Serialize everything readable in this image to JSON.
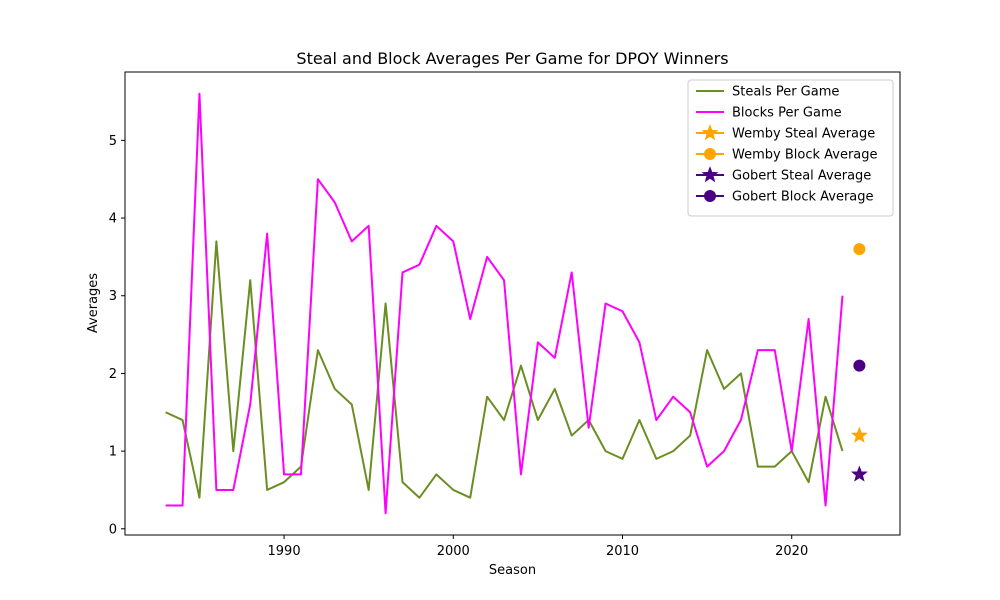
{
  "chart_data": {
    "type": "line",
    "title": "Steal and Block Averages Per Game for DPOY Winners",
    "xlabel": "Season",
    "ylabel": "Averages",
    "xlim": [
      1980.6,
      2026.4
    ],
    "ylim": [
      -0.08,
      5.88
    ],
    "xticks": [
      1990,
      2000,
      2010,
      2020
    ],
    "yticks": [
      0,
      1,
      2,
      3,
      4,
      5
    ],
    "grid": false,
    "legend_position": "top-right",
    "x": [
      1983,
      1984,
      1985,
      1986,
      1987,
      1988,
      1989,
      1990,
      1991,
      1992,
      1993,
      1994,
      1995,
      1996,
      1997,
      1998,
      1999,
      2000,
      2001,
      2002,
      2003,
      2004,
      2005,
      2006,
      2007,
      2008,
      2009,
      2010,
      2011,
      2012,
      2013,
      2014,
      2015,
      2016,
      2017,
      2018,
      2019,
      2020,
      2021,
      2022,
      2023
    ],
    "series": [
      {
        "name": "Steals Per Game",
        "color": "#6b8e23",
        "values": [
          1.5,
          1.4,
          0.4,
          3.7,
          1.0,
          3.2,
          0.5,
          0.6,
          0.8,
          2.3,
          1.8,
          1.6,
          0.5,
          2.9,
          0.6,
          0.4,
          0.7,
          0.5,
          0.4,
          1.7,
          1.4,
          2.1,
          1.4,
          1.8,
          1.2,
          1.4,
          1.0,
          0.9,
          1.4,
          0.9,
          1.0,
          1.2,
          2.3,
          1.8,
          2.0,
          0.8,
          0.8,
          1.0,
          0.6,
          1.7,
          1.0
        ]
      },
      {
        "name": "Blocks Per Game",
        "color": "#ff00ff",
        "values": [
          0.3,
          0.3,
          5.6,
          0.5,
          0.5,
          1.6,
          3.8,
          0.7,
          0.7,
          4.5,
          4.2,
          3.7,
          3.9,
          0.2,
          3.3,
          3.4,
          3.9,
          3.7,
          2.7,
          3.5,
          3.2,
          0.7,
          2.4,
          2.2,
          3.3,
          1.3,
          2.9,
          2.8,
          2.4,
          1.4,
          1.7,
          1.5,
          0.8,
          1.0,
          1.4,
          2.3,
          2.3,
          1.0,
          2.7,
          0.3,
          3.0
        ]
      }
    ],
    "markers": [
      {
        "name": "Wemby Steal Average",
        "x": 2024,
        "y": 1.2,
        "color": "#ffa500",
        "shape": "star"
      },
      {
        "name": "Wemby Block Average",
        "x": 2024,
        "y": 3.6,
        "color": "#ffa500",
        "shape": "circle"
      },
      {
        "name": "Gobert Steal Average",
        "x": 2024,
        "y": 0.7,
        "color": "#4b0082",
        "shape": "star"
      },
      {
        "name": "Gobert Block Average",
        "x": 2024,
        "y": 2.1,
        "color": "#4b0082",
        "shape": "circle"
      }
    ]
  }
}
